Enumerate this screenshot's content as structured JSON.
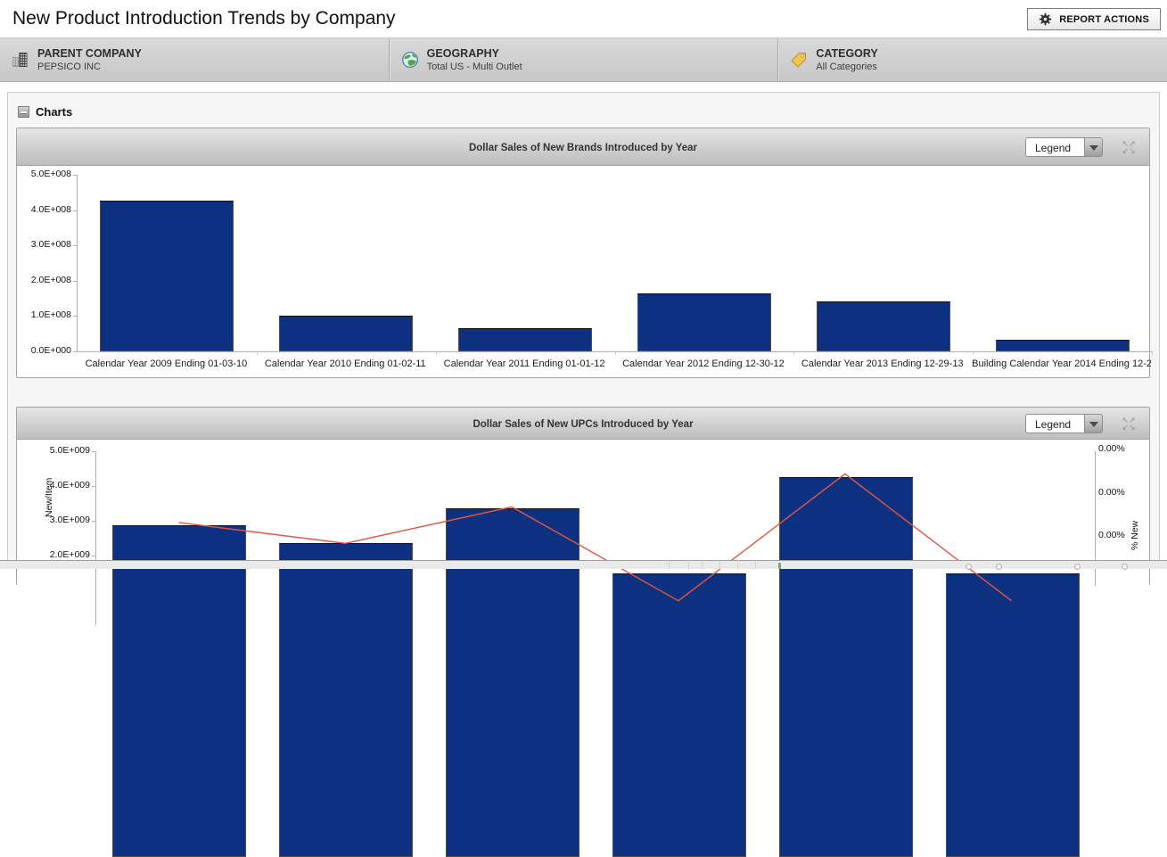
{
  "page": {
    "title": "New Product Introduction Trends by Company"
  },
  "report_actions": {
    "label": "REPORT ACTIONS",
    "icon": "gear-icon"
  },
  "filters": [
    {
      "icon": "buildings-icon",
      "label": "PARENT COMPANY",
      "value": "PEPSICO INC"
    },
    {
      "icon": "globe-icon",
      "label": "GEOGRAPHY",
      "value": "Total US - Multi Outlet"
    },
    {
      "icon": "tag-icon",
      "label": "CATEGORY",
      "value": "All Categories"
    }
  ],
  "charts_section": {
    "label": "Charts",
    "collapse_icon": "minus-icon"
  },
  "colors": {
    "bar_fill": "#0e3080",
    "line_stroke": "#e2573f",
    "header_gradient_top": "#e6e6e6",
    "header_gradient_bottom": "#bdbdbd"
  },
  "chart_data": [
    {
      "type": "bar",
      "title": "Dollar Sales of New Brands Introduced by Year",
      "legend_label": "Legend",
      "categories": [
        "Calendar Year 2009 Ending 01-03-10",
        "Calendar Year 2010 Ending 01-02-11",
        "Calendar Year 2011 Ending 01-01-12",
        "Calendar Year 2012 Ending 12-30-12",
        "Calendar Year 2013 Ending 12-29-13",
        "Building Calendar Year 2014 Ending 12-2..."
      ],
      "values": [
        427000000,
        100000000,
        66000000,
        163000000,
        142000000,
        32000000
      ],
      "ylim": [
        0,
        500000000
      ],
      "y_ticks": [
        "5.0E+008",
        "4.0E+008",
        "3.0E+008",
        "2.0E+008",
        "1.0E+008",
        "0.0E+000"
      ],
      "grid": false,
      "legend_position": "dropdown-collapsed"
    },
    {
      "type": "bar+line",
      "title": "Dollar Sales of New UPCs Introduced by Year",
      "legend_label": "Legend",
      "categories": [
        "Calendar Year 2009 Ending 01-03-10",
        "Calendar Year 2010 Ending 01-02-11",
        "Calendar Year 2011 Ending 01-01-12",
        "Calendar Year 2012 Ending 12-30-12",
        "Calendar Year 2013 Ending 12-29-13",
        "Building Calendar Year 2014 Ending 12-2..."
      ],
      "ylabel_left": "New/Item",
      "ylabel_right": "% New",
      "ylim_left": [
        0,
        5000000000
      ],
      "left_ticks_visible": [
        "5.0E+009",
        "4.0E+009",
        "3.0E+009",
        "2.0E+009"
      ],
      "right_ticks_visible": [
        "0.00%",
        "0.00%",
        "0.00%"
      ],
      "series": [
        {
          "name": "Dollar Sales",
          "type": "bar",
          "axis": "left",
          "values": [
            2870000000,
            2350000000,
            3350000000,
            1500000000,
            4250000000,
            1500000000
          ]
        },
        {
          "name": "% New",
          "type": "line",
          "axis": "right",
          "approx_points_on_left_scale_e9": [
            2.95,
            2.35,
            3.4,
            0.7,
            4.35,
            0.7
          ]
        }
      ],
      "visibility_note": "chart clipped by viewport bottom; 2012 and 2014 bar tops fall below the visible area"
    }
  ]
}
